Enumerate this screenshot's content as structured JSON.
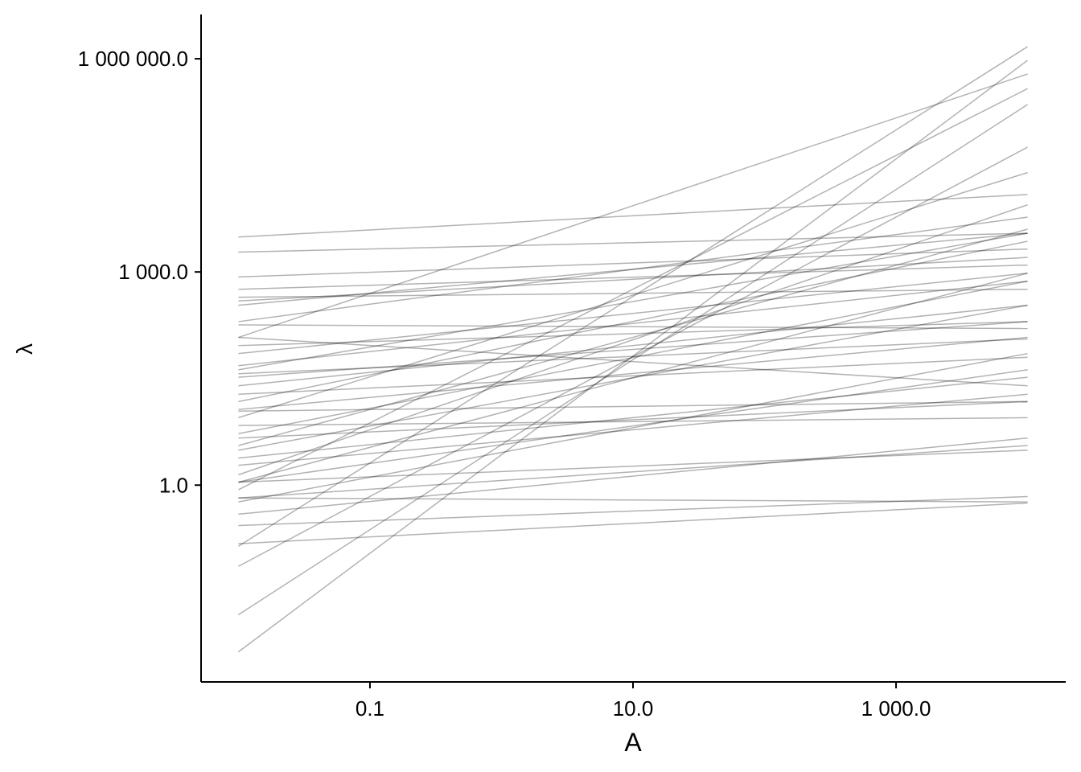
{
  "chart_data": {
    "type": "line",
    "x_label": "A",
    "y_label": "λ",
    "xscale": "log",
    "yscale": "log",
    "xlim": [
      0.0052,
      19500
    ],
    "ylim": [
      0.0017,
      4200000
    ],
    "xticks": [
      {
        "value": 0.1,
        "label": "0.1"
      },
      {
        "value": 10,
        "label": "10.0"
      },
      {
        "value": 1000,
        "label": "1 000.0"
      }
    ],
    "yticks": [
      {
        "value": 1,
        "label": "1.0"
      },
      {
        "value": 1000,
        "label": "1 000.0"
      },
      {
        "value": 1000000,
        "label": "1 000 000.0"
      }
    ],
    "grid": false,
    "color": "#000000",
    "opacity": 0.3,
    "x": [
      0.01,
      10000
    ],
    "series": [
      {
        "values": [
          3100,
          12300
        ]
      },
      {
        "values": [
          1900,
          3500
        ]
      },
      {
        "values": [
          850,
          2100
        ]
      },
      {
        "values": [
          0.0045,
          950000
        ]
      },
      {
        "values": [
          0.015,
          227000
        ]
      },
      {
        "values": [
          0.072,
          57000
        ]
      },
      {
        "values": [
          0.138,
          1480000
        ]
      },
      {
        "values": [
          120,
          610000
        ]
      },
      {
        "values": [
          0.66,
          0.58
        ]
      },
      {
        "values": [
          0.27,
          0.69
        ]
      },
      {
        "values": [
          0.15,
          0.56
        ]
      },
      {
        "values": [
          1.1,
          3.1
        ]
      },
      {
        "values": [
          0.58,
          71
        ]
      },
      {
        "values": [
          3.1,
          340
        ]
      },
      {
        "values": [
          5.3,
          740
        ]
      },
      {
        "values": [
          15,
          2700
        ]
      },
      {
        "values": [
          42,
          3500
        ]
      },
      {
        "values": [
          120,
          25
        ]
      },
      {
        "values": [
          37,
          114
        ]
      },
      {
        "values": [
          33,
          200
        ]
      },
      {
        "values": [
          71,
          960
        ]
      },
      {
        "values": [
          340,
          3500
        ]
      },
      {
        "values": [
          440,
          570
        ]
      },
      {
        "values": [
          200,
          5900
        ]
      },
      {
        "values": [
          8.9,
          25000
        ]
      },
      {
        "values": [
          1.4,
          8800
        ]
      },
      {
        "values": [
          1.1,
          960
        ]
      },
      {
        "values": [
          1.9,
          19
        ]
      },
      {
        "values": [
          4.6,
          15
        ]
      },
      {
        "values": [
          11.6,
          120
        ]
      },
      {
        "values": [
          19,
          63
        ]
      },
      {
        "values": [
          6.9,
          8.9
        ]
      },
      {
        "values": [
          0.66,
          3.6
        ]
      },
      {
        "values": [
          0.39,
          4.6
        ]
      },
      {
        "values": [
          1.1,
          42
        ]
      },
      {
        "values": [
          2.4,
          33
        ]
      },
      {
        "values": [
          25,
          340
        ]
      },
      {
        "values": [
          48,
          740
        ]
      },
      {
        "values": [
          92,
          200
        ]
      },
      {
        "values": [
          180,
          160
        ]
      },
      {
        "values": [
          570,
          1250
        ]
      },
      {
        "values": [
          390,
          1600
        ]
      },
      {
        "values": [
          3.6,
          4000
        ]
      },
      {
        "values": [
          0.86,
          380000
        ]
      },
      {
        "values": [
          11,
          15
        ]
      }
    ]
  }
}
